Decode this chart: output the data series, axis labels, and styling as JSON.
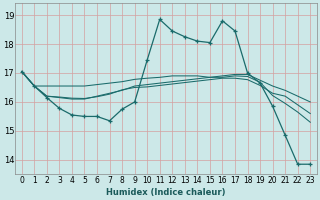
{
  "xlabel": "Humidex (Indice chaleur)",
  "bg_color": "#cce8e8",
  "grid_color_major": "#d4a0a0",
  "grid_color_minor": "#ddbfbf",
  "line_color": "#1a6b6b",
  "xlim": [
    -0.5,
    23.5
  ],
  "ylim": [
    13.5,
    19.4
  ],
  "yticks": [
    14,
    15,
    16,
    17,
    18,
    19
  ],
  "xticks": [
    0,
    1,
    2,
    3,
    4,
    5,
    6,
    7,
    8,
    9,
    10,
    11,
    12,
    13,
    14,
    15,
    16,
    17,
    18,
    19,
    20,
    21,
    22,
    23
  ],
  "line1_x": [
    0,
    1,
    2,
    3,
    4,
    5,
    6,
    7,
    8,
    9,
    10,
    11,
    12,
    13,
    14,
    15,
    16,
    17,
    18,
    19,
    20,
    21,
    22,
    23
  ],
  "line1_y": [
    17.05,
    16.55,
    16.15,
    15.78,
    15.55,
    15.5,
    15.5,
    15.35,
    15.75,
    16.0,
    17.45,
    18.85,
    18.45,
    18.25,
    18.1,
    18.05,
    18.8,
    18.45,
    17.0,
    16.65,
    15.85,
    14.85,
    13.85,
    13.85
  ],
  "line2_x": [
    0,
    1,
    2,
    3,
    4,
    5,
    6,
    7,
    8,
    9,
    10,
    11,
    12,
    13,
    14,
    15,
    16,
    17,
    18,
    19,
    20,
    21,
    22,
    23
  ],
  "line2_y": [
    17.05,
    16.55,
    16.2,
    16.15,
    16.1,
    16.1,
    16.2,
    16.3,
    16.4,
    16.55,
    16.6,
    16.65,
    16.7,
    16.75,
    16.8,
    16.85,
    16.9,
    16.95,
    16.95,
    16.75,
    16.55,
    16.4,
    16.2,
    16.0
  ],
  "line3_x": [
    0,
    1,
    2,
    3,
    4,
    5,
    6,
    7,
    8,
    9,
    10,
    11,
    12,
    13,
    14,
    15,
    16,
    17,
    18,
    19,
    20,
    21,
    22,
    23
  ],
  "line3_y": [
    17.05,
    16.55,
    16.2,
    16.17,
    16.13,
    16.12,
    16.18,
    16.27,
    16.42,
    16.5,
    16.52,
    16.57,
    16.62,
    16.67,
    16.72,
    16.77,
    16.82,
    16.82,
    16.77,
    16.57,
    16.3,
    16.2,
    15.9,
    15.6
  ],
  "line4_x": [
    0,
    1,
    2,
    3,
    4,
    5,
    6,
    7,
    8,
    9,
    10,
    11,
    12,
    13,
    14,
    15,
    16,
    17,
    18,
    19,
    20,
    21,
    22,
    23
  ],
  "line4_y": [
    17.05,
    16.55,
    16.55,
    16.55,
    16.55,
    16.55,
    16.6,
    16.65,
    16.7,
    16.78,
    16.82,
    16.85,
    16.9,
    16.9,
    16.9,
    16.85,
    16.85,
    16.9,
    16.88,
    16.68,
    16.22,
    15.95,
    15.65,
    15.3
  ],
  "xlabel_fontsize": 6,
  "tick_fontsize": 5.5
}
